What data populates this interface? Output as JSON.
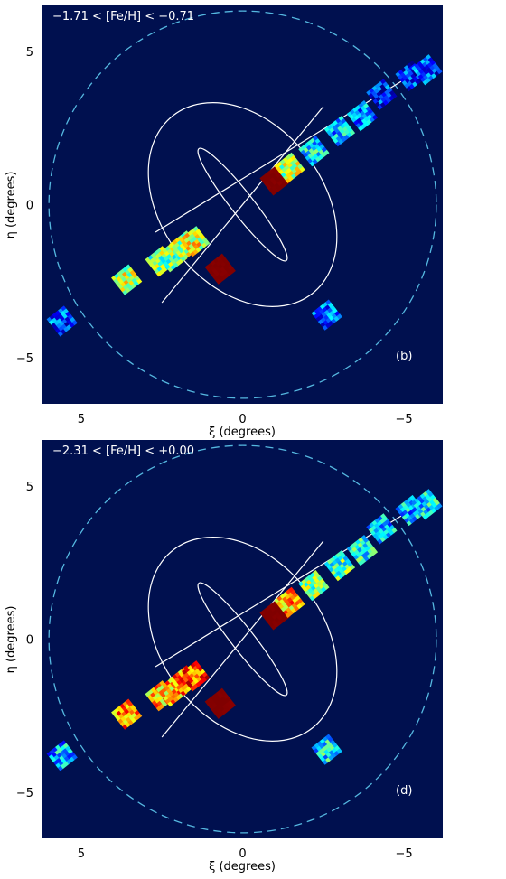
{
  "chart_data": [
    {
      "type": "heatmap",
      "title": "−1.71 < [Fe/H] < −0.71",
      "panel_label": "(b)",
      "xlabel": "ξ (degrees)",
      "ylabel": "η (degrees)",
      "xlim": [
        6.2,
        -6.2
      ],
      "ylim": [
        -6.5,
        6.5
      ],
      "x_ticks": [
        {
          "value": 5,
          "label": "5"
        },
        {
          "value": 0,
          "label": "0"
        },
        {
          "value": -5,
          "label": "−5"
        }
      ],
      "y_ticks": [
        {
          "value": 5,
          "label": "5"
        },
        {
          "value": 0,
          "label": "0"
        },
        {
          "value": -5,
          "label": "−5"
        }
      ],
      "background_color": "#00104f",
      "dashed_circle": {
        "center": [
          0,
          0
        ],
        "radius_deg": 6.0,
        "color": "#55b8e0"
      },
      "inner_ellipse": {
        "center": [
          0,
          0
        ],
        "semi_major_deg": 2.2,
        "semi_minor_deg": 0.35,
        "position_angle_deg": 38,
        "color": "#ffffff"
      },
      "outer_ellipse": {
        "center": [
          0,
          0
        ],
        "semi_major_deg": 3.5,
        "semi_minor_deg": 2.5,
        "position_angle_deg": 38,
        "color": "#ffffff"
      },
      "axis_lines": [
        {
          "from": [
            -2.5,
            3.2
          ],
          "to": [
            2.5,
            -3.2
          ]
        },
        {
          "from": [
            2.7,
            -0.9
          ],
          "to": [
            -5.5,
            4.4
          ]
        }
      ],
      "fields": [
        {
          "xi": 5.6,
          "eta": -3.8,
          "level": 0.2
        },
        {
          "xi": 3.6,
          "eta": -2.45,
          "level": 0.55
        },
        {
          "xi": 2.55,
          "eta": -1.85,
          "level": 0.5
        },
        {
          "xi": 2.2,
          "eta": -1.7,
          "level": 0.5
        },
        {
          "xi": 1.8,
          "eta": -1.35,
          "level": 0.55
        },
        {
          "xi": 1.5,
          "eta": -1.2,
          "level": 0.6
        },
        {
          "xi": 0.7,
          "eta": -2.1,
          "level": 1.0
        },
        {
          "xi": -1.0,
          "eta": 0.8,
          "level": 1.0
        },
        {
          "xi": -1.45,
          "eta": 1.2,
          "level": 0.55
        },
        {
          "xi": -2.2,
          "eta": 1.75,
          "level": 0.35
        },
        {
          "xi": -3.0,
          "eta": 2.4,
          "level": 0.3
        },
        {
          "xi": -3.7,
          "eta": 2.9,
          "level": 0.25
        },
        {
          "xi": -4.3,
          "eta": 3.6,
          "level": 0.15
        },
        {
          "xi": -5.2,
          "eta": 4.2,
          "level": 0.15
        },
        {
          "xi": -5.7,
          "eta": 4.4,
          "level": 0.2
        },
        {
          "xi": -2.6,
          "eta": -3.6,
          "level": 0.2
        }
      ]
    },
    {
      "type": "heatmap",
      "title": "−2.31 < [Fe/H] < +0.00",
      "panel_label": "(d)",
      "xlabel": "ξ (degrees)",
      "ylabel": "η (degrees)",
      "xlim": [
        6.2,
        -6.2
      ],
      "ylim": [
        -6.5,
        6.5
      ],
      "x_ticks": [
        {
          "value": 5,
          "label": "5"
        },
        {
          "value": 0,
          "label": "0"
        },
        {
          "value": -5,
          "label": "−5"
        }
      ],
      "y_ticks": [
        {
          "value": 5,
          "label": "5"
        },
        {
          "value": 0,
          "label": "0"
        },
        {
          "value": -5,
          "label": "−5"
        }
      ],
      "background_color": "#00104f",
      "dashed_circle": {
        "center": [
          0,
          0
        ],
        "radius_deg": 6.0,
        "color": "#55b8e0"
      },
      "inner_ellipse": {
        "center": [
          0,
          0
        ],
        "semi_major_deg": 2.2,
        "semi_minor_deg": 0.35,
        "position_angle_deg": 38,
        "color": "#ffffff"
      },
      "outer_ellipse": {
        "center": [
          0,
          0
        ],
        "semi_major_deg": 3.5,
        "semi_minor_deg": 2.5,
        "position_angle_deg": 38,
        "color": "#ffffff"
      },
      "axis_lines": [
        {
          "from": [
            -2.5,
            3.2
          ],
          "to": [
            2.5,
            -3.2
          ]
        },
        {
          "from": [
            2.7,
            -0.9
          ],
          "to": [
            -5.5,
            4.4
          ]
        }
      ],
      "fields": [
        {
          "xi": 5.6,
          "eta": -3.8,
          "level": 0.3
        },
        {
          "xi": 3.6,
          "eta": -2.45,
          "level": 0.75
        },
        {
          "xi": 2.55,
          "eta": -1.85,
          "level": 0.7
        },
        {
          "xi": 2.2,
          "eta": -1.7,
          "level": 0.7
        },
        {
          "xi": 1.8,
          "eta": -1.35,
          "level": 0.75
        },
        {
          "xi": 1.5,
          "eta": -1.2,
          "level": 0.8
        },
        {
          "xi": 0.7,
          "eta": -2.1,
          "level": 1.0
        },
        {
          "xi": -1.0,
          "eta": 0.8,
          "level": 1.0
        },
        {
          "xi": -1.45,
          "eta": 1.2,
          "level": 0.7
        },
        {
          "xi": -2.2,
          "eta": 1.75,
          "level": 0.5
        },
        {
          "xi": -3.0,
          "eta": 2.4,
          "level": 0.45
        },
        {
          "xi": -3.7,
          "eta": 2.9,
          "level": 0.4
        },
        {
          "xi": -4.3,
          "eta": 3.6,
          "level": 0.3
        },
        {
          "xi": -5.2,
          "eta": 4.2,
          "level": 0.3
        },
        {
          "xi": -5.7,
          "eta": 4.4,
          "level": 0.35
        },
        {
          "xi": -2.6,
          "eta": -3.6,
          "level": 0.35
        }
      ]
    }
  ]
}
